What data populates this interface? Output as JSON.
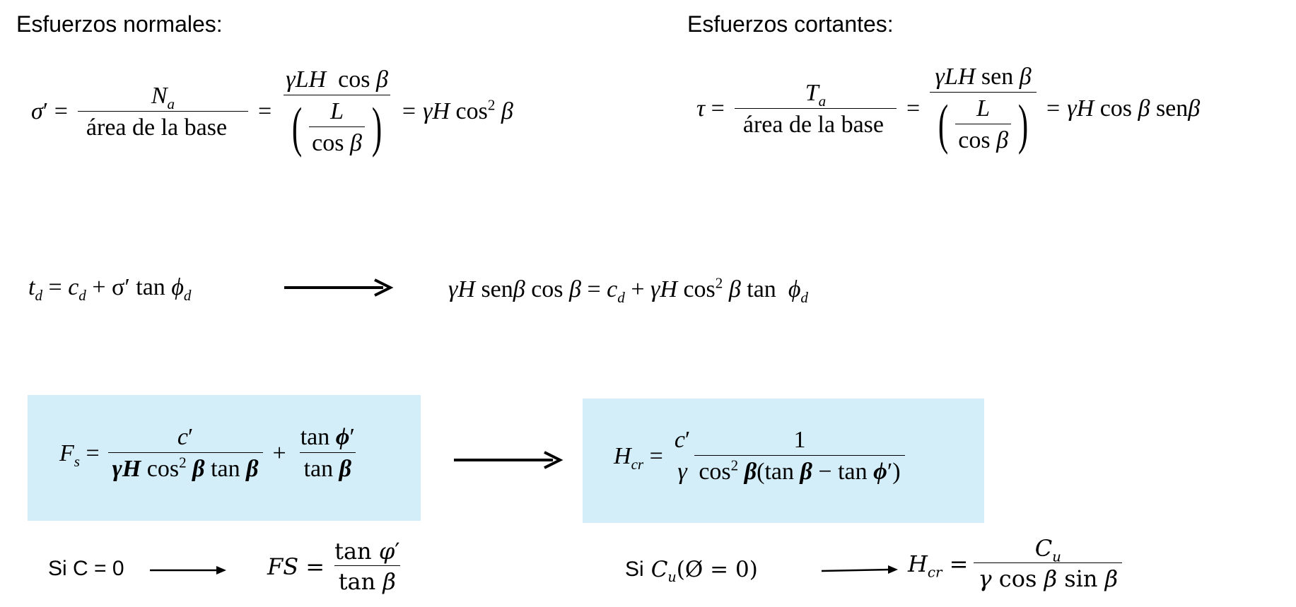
{
  "headings": {
    "normal": "Esfuerzos normales:",
    "shear": "Esfuerzos cortantes:"
  },
  "conditions": {
    "c_zero": "Si C = 0",
    "cu_prefix": "Si"
  },
  "equations": {
    "normal_stress": "σ′ = Nₐ / área de la base = γLH cos β / (L / cos β) = γH cos² β",
    "shear_stress": "τ = Tₐ / área de la base = γLH sen β / (L / cos β) = γH cos β senβ",
    "mobilized_shear": "t_d = c_d + σ′ tan φ_d",
    "equilibrium": "γH senβ cos β = c_d + γH cos² β tan φ_d",
    "factor_of_safety": "F_s = c′ / (γH cos² β tan β) + tan φ′ / tan β",
    "critical_height": "H_cr = c′/γ · 1 / (cos² β(tan β − tan φ′))",
    "fs_cohesionless": "FS = tan φ′ / tan β",
    "hcr_undrained": "H_cr = C_u / (γ cos β sin β)"
  },
  "text": {
    "area_base": "área de la base"
  },
  "colors": {
    "highlight_box": "#d3eef9",
    "ink": "#000000"
  }
}
